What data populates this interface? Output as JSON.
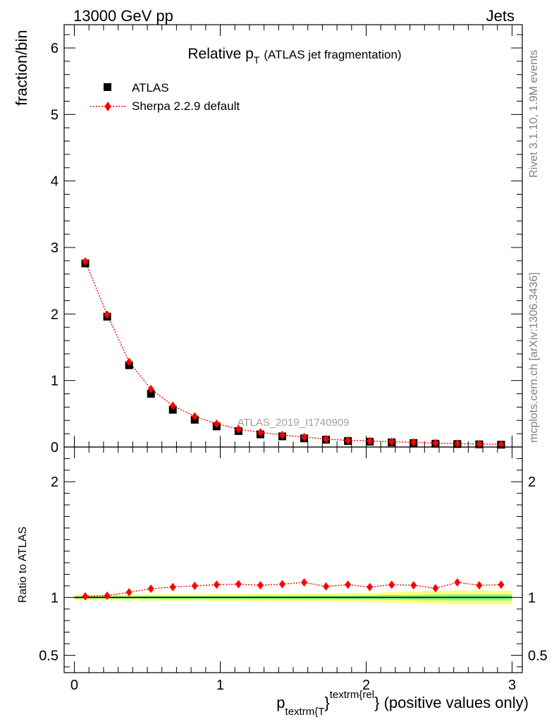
{
  "header": {
    "left": "13000 GeV pp",
    "right": "Jets"
  },
  "side_labels": {
    "rivet": "Rivet 3.1.10,  1.9M events",
    "mcplots": "mcplots.cern.ch [arXiv:1306.3436]"
  },
  "colors": {
    "atlas": "#000000",
    "sherpa": "#ff0000",
    "band_outer": "#ffff7f",
    "band_inner": "#7fff7f"
  },
  "chart_data": [
    {
      "type": "scatter",
      "panel": "main",
      "title_main": "Relative p",
      "title_sub": "T",
      "title_extra": "(ATLAS jet fragmentation)",
      "watermark": "ATLAS_2019_I1740909",
      "ylabel": "fraction/bin",
      "xlim": [
        -0.07,
        3.07
      ],
      "ylim": [
        0,
        6.35
      ],
      "y_ticks": [
        {
          "v": 0,
          "label": "0"
        },
        {
          "v": 1,
          "label": "1"
        },
        {
          "v": 2,
          "label": "2"
        },
        {
          "v": 3,
          "label": "3"
        },
        {
          "v": 4,
          "label": "4"
        },
        {
          "v": 5,
          "label": "5"
        },
        {
          "v": 6,
          "label": "6"
        }
      ],
      "legend": {
        "position": "top-left",
        "entries": [
          {
            "name": "ATLAS",
            "marker": "square"
          },
          {
            "name": "Sherpa 2.2.9 default",
            "marker": "diamond"
          }
        ]
      },
      "x": [
        0.075,
        0.225,
        0.375,
        0.525,
        0.675,
        0.825,
        0.975,
        1.125,
        1.275,
        1.425,
        1.575,
        1.725,
        1.875,
        2.025,
        2.175,
        2.325,
        2.475,
        2.625,
        2.775,
        2.925
      ],
      "series": [
        {
          "name": "ATLAS",
          "values": [
            2.76,
            1.96,
            1.23,
            0.8,
            0.56,
            0.41,
            0.31,
            0.24,
            0.19,
            0.16,
            0.13,
            0.11,
            0.09,
            0.08,
            0.07,
            0.06,
            0.05,
            0.045,
            0.04,
            0.035
          ]
        },
        {
          "name": "Sherpa 2.2.9 default",
          "values": [
            2.79,
            1.99,
            1.28,
            0.87,
            0.62,
            0.46,
            0.35,
            0.27,
            0.22,
            0.18,
            0.15,
            0.12,
            0.1,
            0.09,
            0.08,
            0.07,
            0.06,
            0.05,
            0.045,
            0.04
          ]
        }
      ]
    },
    {
      "type": "scatter",
      "panel": "ratio",
      "ylabel": "Ratio to ATLAS",
      "xlabel_main": "p",
      "xlabel_sub": "textrm{T",
      "xlabel_sup": "textrm{rel",
      "xlabel_brace": "}",
      "xlabel_tail": "} (positive values only)",
      "xlim": [
        -0.07,
        3.07
      ],
      "ylim": [
        0.35,
        2.3
      ],
      "y_ticks": [
        {
          "v": 0.5,
          "label": "0.5"
        },
        {
          "v": 1,
          "label": "1"
        },
        {
          "v": 2,
          "label": "2"
        }
      ],
      "x_ticks": [
        {
          "v": 0,
          "label": "0"
        },
        {
          "v": 1,
          "label": "1"
        },
        {
          "v": 2,
          "label": "2"
        },
        {
          "v": 3,
          "label": "3"
        }
      ],
      "x": [
        0.075,
        0.225,
        0.375,
        0.525,
        0.675,
        0.825,
        0.975,
        1.125,
        1.275,
        1.425,
        1.575,
        1.725,
        1.875,
        2.025,
        2.175,
        2.325,
        2.475,
        2.625,
        2.775,
        2.925
      ],
      "band_inner_halfwidth": [
        0.01,
        0.01,
        0.01,
        0.012,
        0.012,
        0.012,
        0.013,
        0.013,
        0.014,
        0.014,
        0.015,
        0.015,
        0.016,
        0.018,
        0.02,
        0.022,
        0.024,
        0.026,
        0.026,
        0.026
      ],
      "band_outer_halfwidth": [
        0.025,
        0.025,
        0.025,
        0.027,
        0.028,
        0.028,
        0.03,
        0.03,
        0.032,
        0.033,
        0.034,
        0.035,
        0.036,
        0.04,
        0.045,
        0.05,
        0.055,
        0.06,
        0.06,
        0.06
      ],
      "series": [
        {
          "name": "Sherpa 2.2.9 default",
          "values": [
            1.01,
            1.015,
            1.045,
            1.075,
            1.09,
            1.1,
            1.11,
            1.115,
            1.105,
            1.115,
            1.13,
            1.095,
            1.11,
            1.09,
            1.11,
            1.105,
            1.08,
            1.13,
            1.105,
            1.11
          ]
        }
      ]
    }
  ]
}
